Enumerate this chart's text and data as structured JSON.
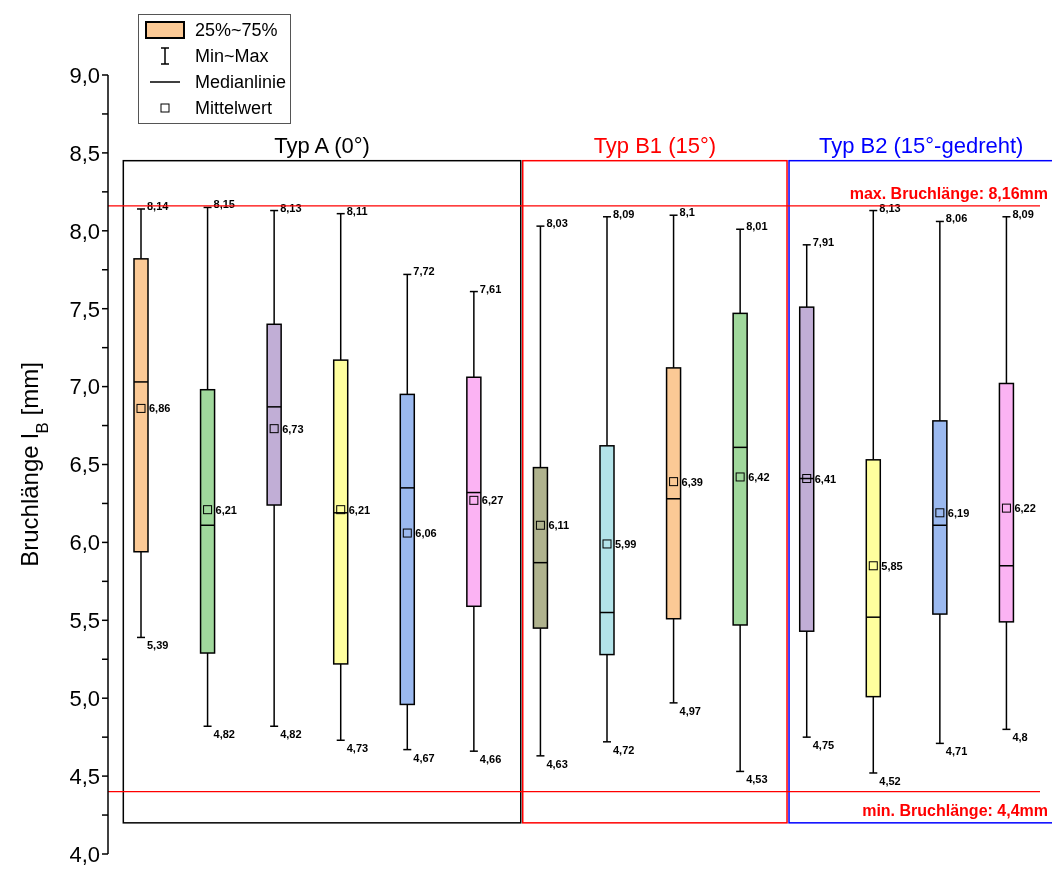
{
  "chart_data": {
    "type": "box",
    "ylabel": "Bruchlänge l$_{B}$ [mm]",
    "categories": [
      null,
      null,
      null,
      null,
      null,
      null,
      null,
      null,
      null,
      null,
      null,
      null,
      null,
      null
    ],
    "colors": [
      "#fbc995",
      "#a0d89c",
      "#c1aed6",
      "#ffff9e",
      "#9bb9ef",
      "#fbb3f3",
      "#b0b38e",
      "#b3e3e9",
      "#fbc995",
      "#a0d89c",
      "#c1aed6",
      "#ffff9e",
      "#9bb9ef",
      "#fbb3f3"
    ],
    "boxes": [
      {
        "low": 5.39,
        "q1": 5.94,
        "median": 7.03,
        "q3": 7.82,
        "high": 8.14,
        "mean": 6.86
      },
      {
        "low": 4.82,
        "q1": 5.29,
        "median": 6.11,
        "q3": 6.98,
        "high": 8.15,
        "mean": 6.21
      },
      {
        "low": 4.82,
        "q1": 6.24,
        "median": 6.87,
        "q3": 7.4,
        "high": 8.13,
        "mean": 6.73
      },
      {
        "low": 4.73,
        "q1": 5.22,
        "median": 6.19,
        "q3": 7.17,
        "high": 8.11,
        "mean": 6.21
      },
      {
        "low": 4.67,
        "q1": 4.96,
        "median": 6.35,
        "q3": 6.95,
        "high": 7.72,
        "mean": 6.06
      },
      {
        "low": 4.66,
        "q1": 5.59,
        "median": 6.32,
        "q3": 7.06,
        "high": 7.61,
        "mean": 6.27
      },
      {
        "low": 4.63,
        "q1": 5.45,
        "median": 5.87,
        "q3": 6.48,
        "high": 8.03,
        "mean": 6.11
      },
      {
        "low": 4.72,
        "q1": 5.28,
        "median": 5.55,
        "q3": 6.62,
        "high": 8.09,
        "mean": 5.99
      },
      {
        "low": 4.97,
        "q1": 5.51,
        "median": 6.28,
        "q3": 7.12,
        "high": 8.1,
        "mean": 6.39
      },
      {
        "low": 4.53,
        "q1": 5.47,
        "median": 6.61,
        "q3": 7.47,
        "high": 8.01,
        "mean": 6.42
      },
      {
        "low": 4.75,
        "q1": 5.43,
        "median": 6.41,
        "q3": 7.51,
        "high": 7.91,
        "mean": 6.41
      },
      {
        "low": 4.52,
        "q1": 5.01,
        "median": 5.52,
        "q3": 6.53,
        "high": 8.13,
        "mean": 5.85
      },
      {
        "low": 4.71,
        "q1": 5.54,
        "median": 6.11,
        "q3": 6.78,
        "high": 8.06,
        "mean": 6.19
      },
      {
        "low": 4.8,
        "q1": 5.49,
        "median": 5.85,
        "q3": 7.02,
        "high": 8.09,
        "mean": 6.22
      }
    ],
    "marker": "square",
    "ylim": [
      4,
      9
    ],
    "yticks": [
      {
        "value": 4,
        "label": "4,0"
      },
      {
        "value": 4.25,
        "label": null
      },
      {
        "value": 4.5,
        "label": "4,5"
      },
      {
        "value": 4.75,
        "label": null
      },
      {
        "value": 5,
        "label": "5,0"
      },
      {
        "value": 5.25,
        "label": null
      },
      {
        "value": 5.5,
        "label": "5,5"
      },
      {
        "value": 5.75,
        "label": null
      },
      {
        "value": 6,
        "label": "6,0"
      },
      {
        "value": 6.25,
        "label": null
      },
      {
        "value": 6.5,
        "label": "6,5"
      },
      {
        "value": 6.75,
        "label": null
      },
      {
        "value": 7,
        "label": "7,0"
      },
      {
        "value": 7.25,
        "label": null
      },
      {
        "value": 7.5,
        "label": "7,5"
      },
      {
        "value": 7.75,
        "label": null
      },
      {
        "value": 8,
        "label": "8,0"
      },
      {
        "value": 8.25,
        "label": null
      },
      {
        "value": 8.5,
        "label": "8,5"
      },
      {
        "value": 8.75,
        "label": null
      },
      {
        "value": 9,
        "label": "9,0"
      }
    ],
    "ref_lines": [
      {
        "axis": "y",
        "value": 8.16,
        "label": "max. Bruchlänge: 8,16mm",
        "color": "#ff0000"
      },
      {
        "axis": "y",
        "value": 4.4,
        "label": "min. Bruchlänge: 4,4mm",
        "color": "#ff0000"
      }
    ],
    "annotations": [
      "25%~75%",
      "Min~Max",
      "Medianlinie",
      "Mittelwert",
      "Typ A (0°)",
      "Typ B1 (15°)",
      "Typ B2 (15°-gedreht)",
      "8,14",
      "6,86",
      "5,39",
      "8,15",
      "6,21",
      "4,82",
      "8,13",
      "6,73",
      "4,82",
      "8,11",
      "6,21",
      "4,73",
      "7,72",
      "6,06",
      "4,67",
      "7,61",
      "6,27",
      "4,66",
      "8,03",
      "6,11",
      "4,63",
      "8,09",
      "5,99",
      "4,72",
      "8,1",
      "6,39",
      "4,97",
      "8,01",
      "6,42",
      "4,53",
      "7,91",
      "6,41",
      "4,75",
      "8,13",
      "5,85",
      "4,52",
      "8,06",
      "6,19",
      "4,71",
      "8,09",
      "6,22",
      "4,8"
    ]
  }
}
